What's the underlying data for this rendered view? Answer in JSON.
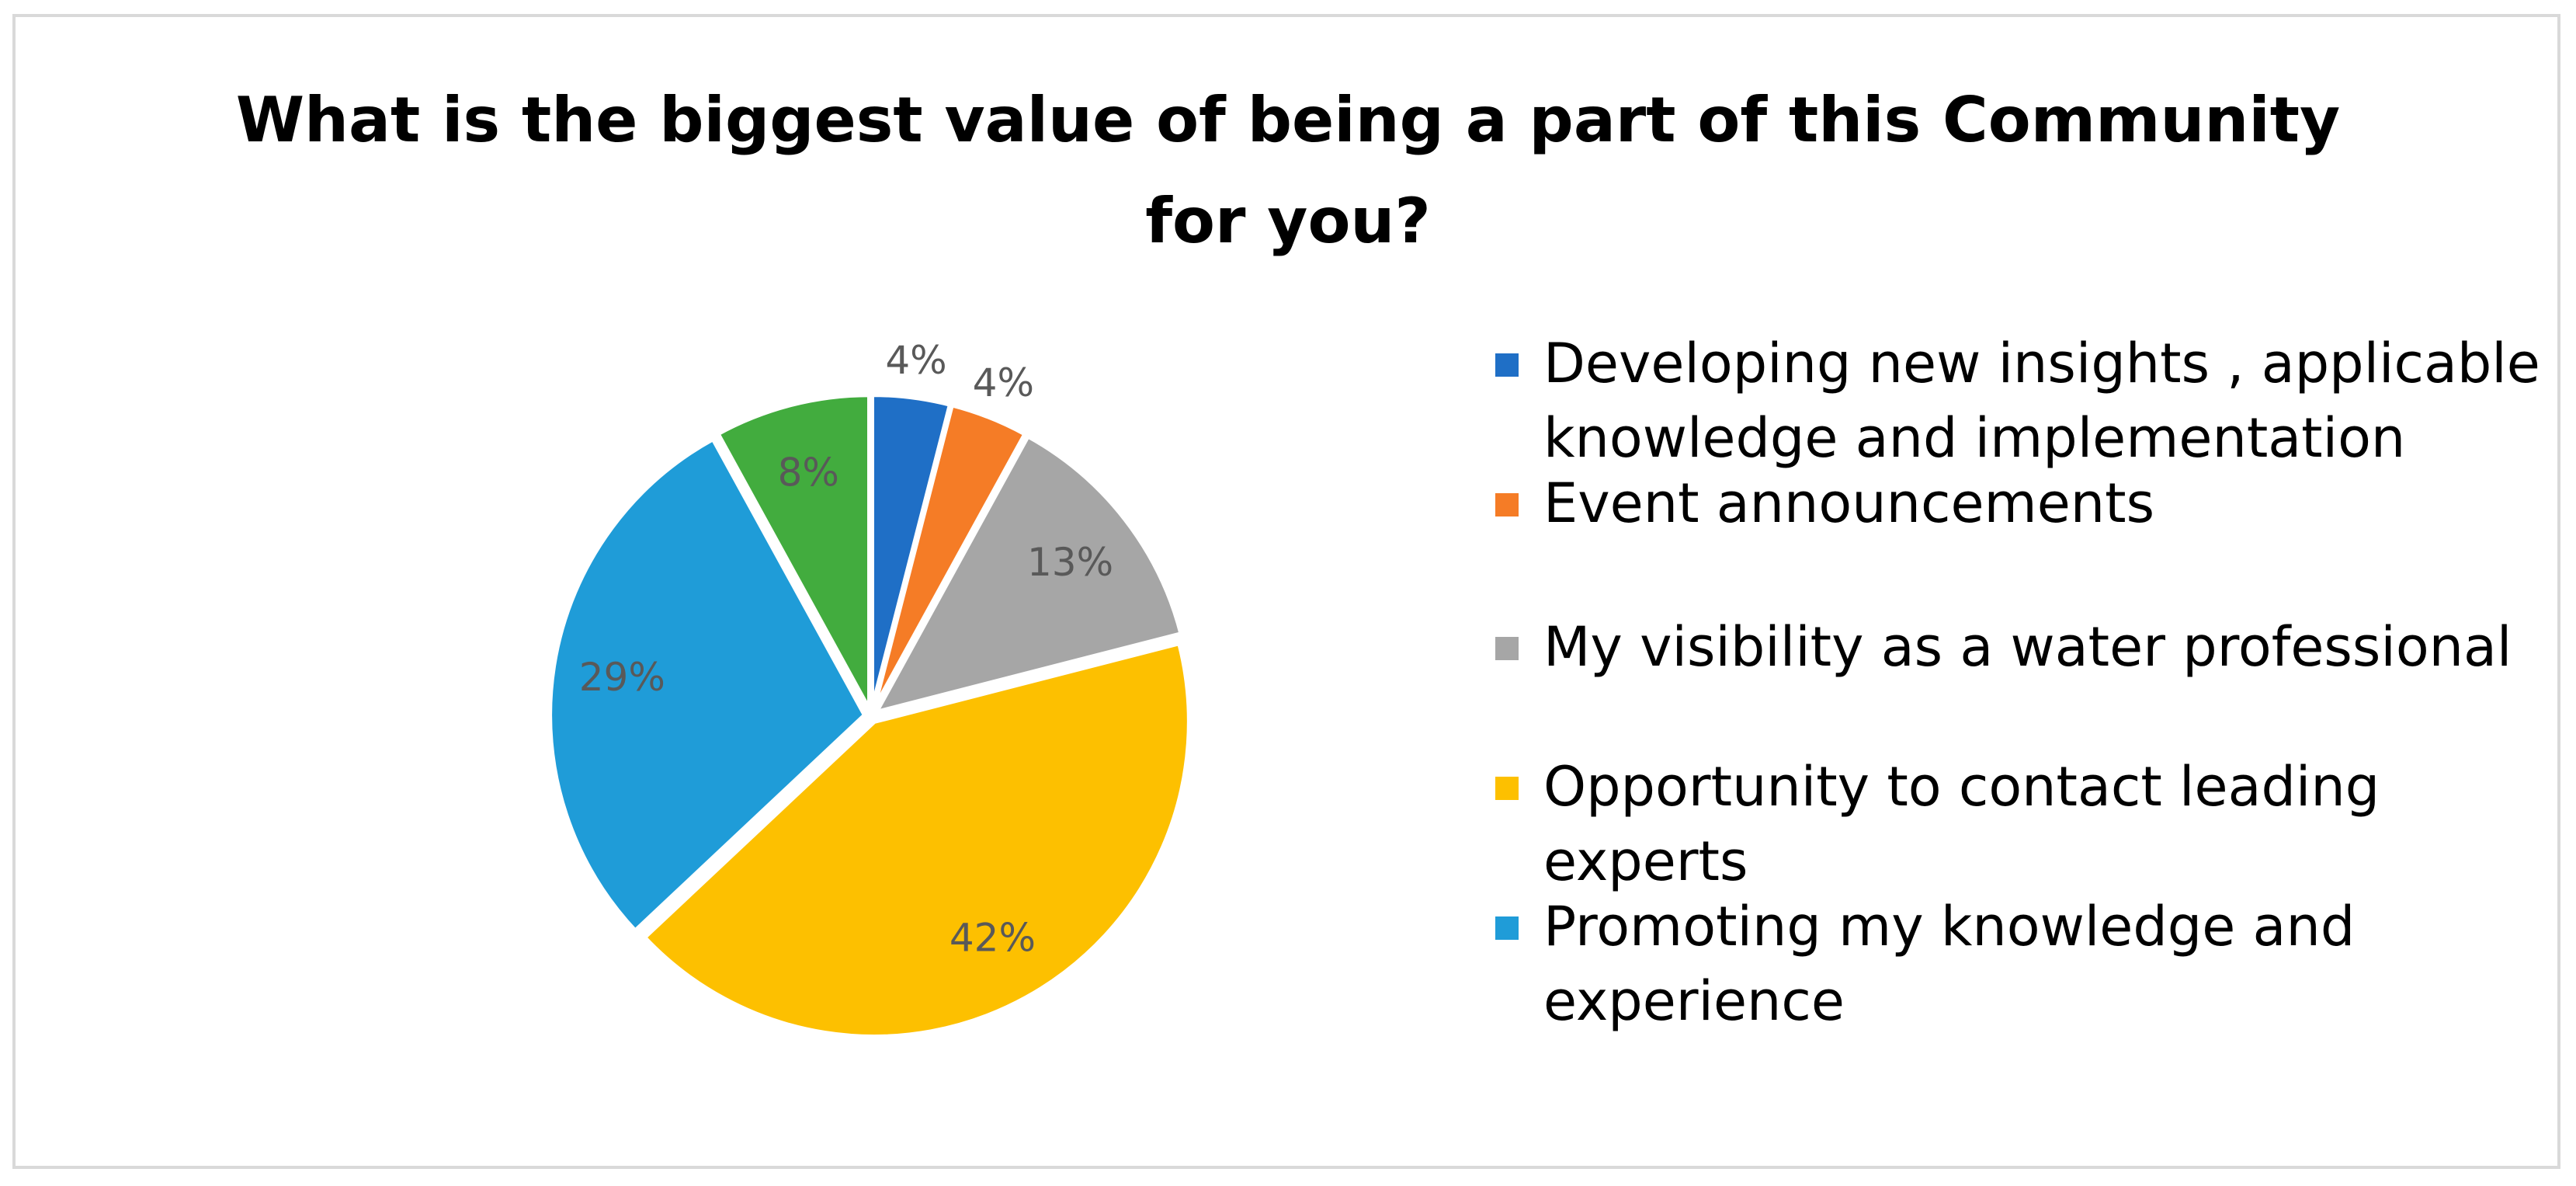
{
  "chart_data": {
    "type": "pie",
    "title_lines": [
      "What is the biggest value of being a part of this Community",
      "for you?"
    ],
    "slices": [
      {
        "label": "Developing new insights , applicable knowledge and implementation",
        "value": 4,
        "display": "4%",
        "color": "#1f6fc6"
      },
      {
        "label": "Event announcements",
        "value": 4,
        "display": "4%",
        "color": "#f57c26"
      },
      {
        "label": "My visibility as a water professional",
        "value": 13,
        "display": "13%",
        "color": "#a6a6a6"
      },
      {
        "label": "Opportunity to contact leading experts",
        "value": 42,
        "display": "42%",
        "color": "#fdc000"
      },
      {
        "label": "Promoting my knowledge and experience",
        "value": 29,
        "display": "29%",
        "color": "#1f9cd8"
      },
      {
        "label": "",
        "value": 8,
        "display": "8%",
        "color": "#42ac3e"
      }
    ],
    "start_angle_deg": 0,
    "direction": "clockwise",
    "legend_position": "right",
    "data_labels": "percent"
  },
  "legend": {
    "items": [
      {
        "lines": [
          "Developing new insights , applicable",
          "knowledge and implementation"
        ],
        "color": "#1f6fc6"
      },
      {
        "lines": [
          "Event announcements"
        ],
        "color": "#f57c26"
      },
      {
        "lines": [
          "My visibility as a water professional"
        ],
        "color": "#a6a6a6"
      },
      {
        "lines": [
          "Opportunity to contact leading",
          "experts"
        ],
        "color": "#fdc000"
      },
      {
        "lines": [
          "Promoting my knowledge and",
          "experience"
        ],
        "color": "#1f9cd8"
      }
    ]
  }
}
